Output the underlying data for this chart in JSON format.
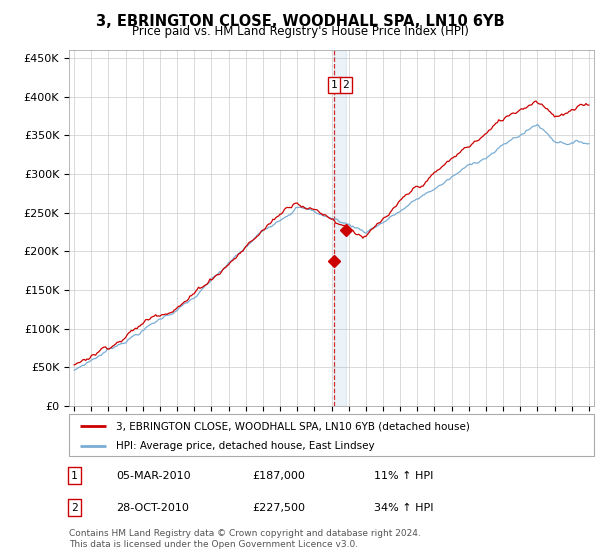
{
  "title": "3, EBRINGTON CLOSE, WOODHALL SPA, LN10 6YB",
  "subtitle": "Price paid vs. HM Land Registry's House Price Index (HPI)",
  "legend_line1": "3, EBRINGTON CLOSE, WOODHALL SPA, LN10 6YB (detached house)",
  "legend_line2": "HPI: Average price, detached house, East Lindsey",
  "footer": "Contains HM Land Registry data © Crown copyright and database right 2024.\nThis data is licensed under the Open Government Licence v3.0.",
  "annotation1": [
    "1",
    "05-MAR-2010",
    "£187,000",
    "11% ↑ HPI"
  ],
  "annotation2": [
    "2",
    "28-OCT-2010",
    "£227,500",
    "34% ↑ HPI"
  ],
  "red_color": "#cc0000",
  "blue_color": "#7aadd4",
  "marker1_date": 2010.17,
  "marker1_value": 187000,
  "marker2_date": 2010.83,
  "marker2_value": 227500,
  "vline_date": 2010.17,
  "vline2_date": 2010.83,
  "ylim_max": 460000,
  "xlim_start": 1994.7,
  "xlim_end": 2025.3,
  "yticks": [
    0,
    50000,
    100000,
    150000,
    200000,
    250000,
    300000,
    350000,
    400000,
    450000
  ]
}
